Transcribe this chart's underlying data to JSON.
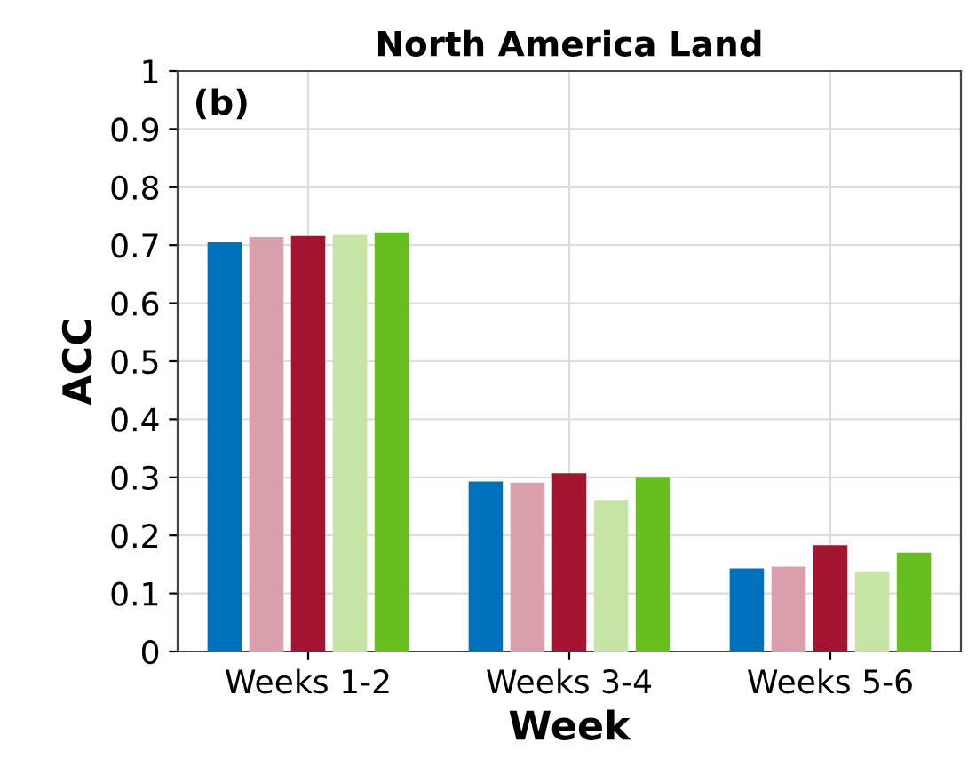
{
  "chart_data": {
    "type": "bar",
    "title": "North America Land",
    "xlabel": "Week",
    "ylabel": "ACC",
    "annotations": [
      "(b)"
    ],
    "categories": [
      "Weeks 1-2",
      "Weeks 3-4",
      "Weeks 5-6"
    ],
    "series": [
      {
        "color": "#0072bd",
        "values": [
          0.705,
          0.293,
          0.143
        ]
      },
      {
        "color": "#d9a0ab",
        "values": [
          0.714,
          0.291,
          0.146
        ]
      },
      {
        "color": "#a2142f",
        "values": [
          0.716,
          0.307,
          0.183
        ]
      },
      {
        "color": "#c5e4a5",
        "values": [
          0.718,
          0.261,
          0.138
        ]
      },
      {
        "color": "#66bf1f",
        "values": [
          0.722,
          0.301,
          0.17
        ]
      }
    ],
    "ylim": [
      0,
      1
    ],
    "yticks": [
      0,
      0.1,
      0.2,
      0.3,
      0.4,
      0.5,
      0.6,
      0.7,
      0.8,
      0.9,
      1
    ],
    "grid": true,
    "legend": false
  }
}
